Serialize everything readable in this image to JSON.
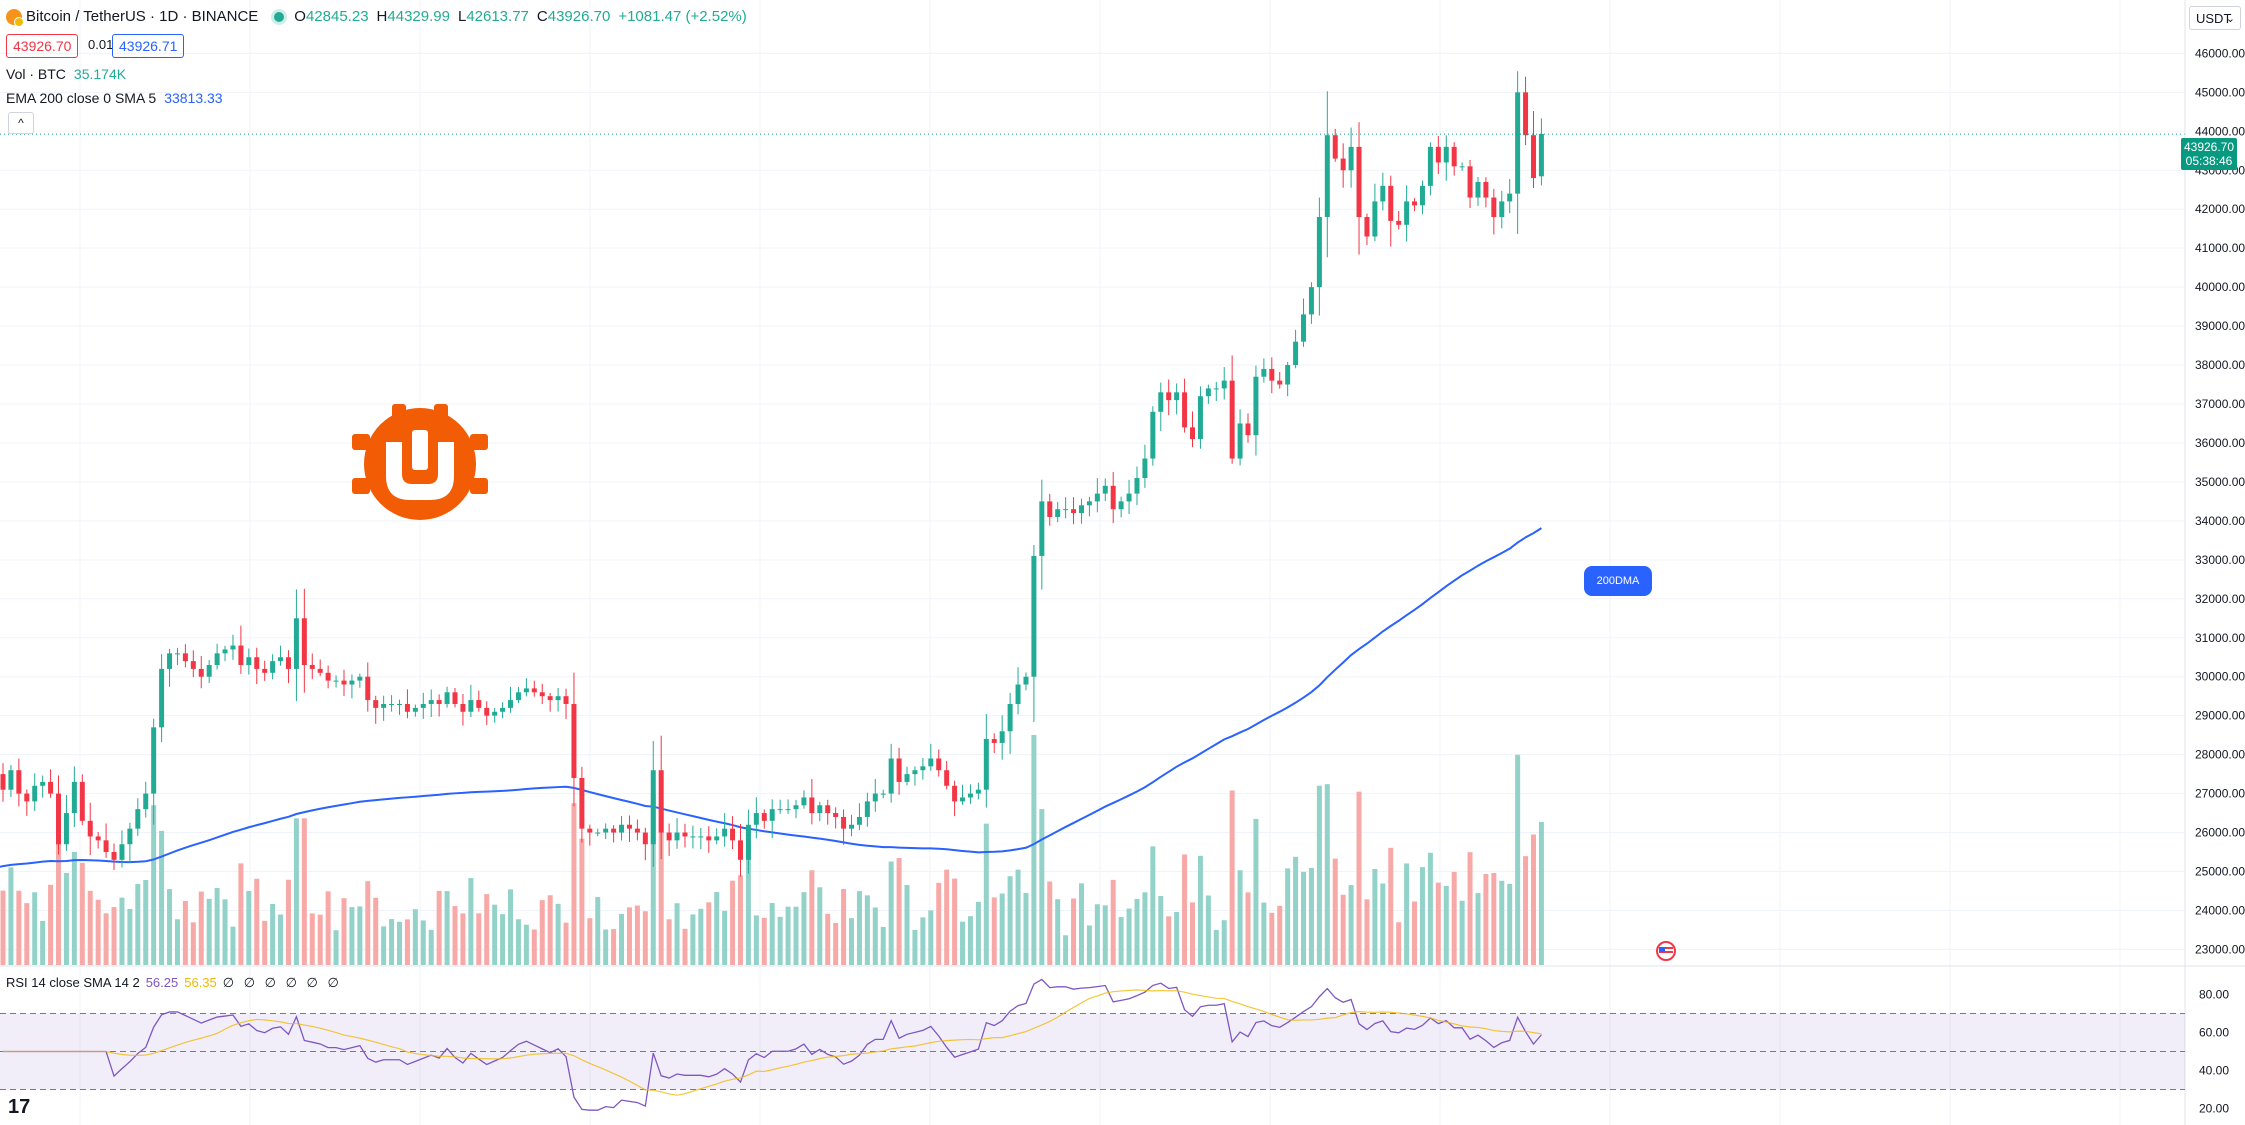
{
  "header": {
    "symbol": "Bitcoin / TetherUS · 1D · BINANCE",
    "ohlc": [
      {
        "k": "O",
        "v": "42845.23"
      },
      {
        "k": "H",
        "v": "44329.99"
      },
      {
        "k": "L",
        "v": "42613.77"
      },
      {
        "k": "C",
        "v": "43926.70"
      },
      {
        "k": "",
        "v": "+1081.47 (+2.52%)"
      }
    ],
    "sell_price": "43926.70",
    "spread": "0.01",
    "buy_price": "43926.71",
    "currency": "USDT",
    "collapse_icon": "chevron-up-icon"
  },
  "indicators": {
    "vol_label": "Vol · BTC",
    "vol_value": "35.174K",
    "ema_label": "EMA 200 close 0 SMA 5",
    "ema_value": "33813.33"
  },
  "price_tag": {
    "price": "43926.70",
    "countdown": "05:38:46"
  },
  "annotation_label": "200DMA",
  "rsi": {
    "label": "RSI 14 close SMA 14 2",
    "value": "56.25",
    "sma_value": "56.35",
    "extra": "∅ ∅ ∅ ∅ ∅ ∅"
  },
  "brand": {
    "tv_logo": "17"
  },
  "colors": {
    "up": "#22ab94",
    "down": "#f23645",
    "ema": "#2962ff",
    "rsi": "#7e57c2",
    "rsi_sma": "#f0b90b",
    "logo": "#f25c05",
    "vol_up": "#93d2c9",
    "vol_down": "#f7a9a7"
  },
  "chart_data": {
    "type": "candlestick",
    "ylim": [
      22600,
      46600
    ],
    "price_ticks": [
      23000,
      24000,
      25000,
      26000,
      27000,
      28000,
      29000,
      30000,
      31000,
      32000,
      33000,
      34000,
      35000,
      36000,
      37000,
      38000,
      39000,
      40000,
      41000,
      42000,
      43000,
      44000,
      45000,
      46000
    ],
    "last_price": 43926.7,
    "close": [
      27100,
      27600,
      27000,
      26800,
      27200,
      27300,
      27000,
      25700,
      26500,
      27300,
      26300,
      25900,
      25800,
      25500,
      25300,
      25700,
      26100,
      26600,
      27000,
      28700,
      30200,
      30600,
      30600,
      30400,
      30200,
      30000,
      30300,
      30600,
      30700,
      30800,
      30300,
      30500,
      30200,
      30100,
      30400,
      30500,
      30200,
      31500,
      30300,
      30200,
      30100,
      29900,
      29900,
      29800,
      29900,
      30000,
      29400,
      29200,
      29300,
      29300,
      29300,
      29100,
      29200,
      29300,
      29400,
      29300,
      29600,
      29300,
      29100,
      29400,
      29200,
      29000,
      29100,
      29200,
      29400,
      29600,
      29700,
      29600,
      29500,
      29400,
      29500,
      29300,
      27400,
      26100,
      26000,
      26000,
      26100,
      26000,
      26200,
      26100,
      26000,
      25700,
      27600,
      26000,
      25800,
      26000,
      25900,
      25900,
      25900,
      25800,
      25900,
      26100,
      25800,
      25300,
      26200,
      26500,
      26300,
      26600,
      26600,
      26600,
      26700,
      26900,
      26500,
      26700,
      26500,
      26400,
      26100,
      26200,
      26400,
      26800,
      27000,
      27000,
      27900,
      27300,
      27500,
      27600,
      27700,
      27900,
      27600,
      27200,
      26800,
      26900,
      27000,
      27100,
      28400,
      28300,
      28600,
      29300,
      29800,
      30000,
      33100,
      34500,
      34100,
      34300,
      34300,
      34200,
      34400,
      34500,
      34700,
      34900,
      34300,
      34500,
      34700,
      35100,
      35600,
      36800,
      37300,
      37100,
      37300,
      36400,
      36100,
      37200,
      37400,
      37400,
      37600,
      35600,
      36500,
      36200,
      37700,
      37900,
      37600,
      37500,
      38000,
      38600,
      39300,
      40000,
      41800,
      43900,
      43300,
      43000,
      43600,
      41800,
      41300,
      42200,
      42600,
      41700,
      41600,
      42200,
      42100,
      42600,
      43600,
      43200,
      43600,
      43100,
      43100,
      42300,
      42700,
      42300,
      41800,
      42200,
      42400,
      45000,
      43900,
      42800,
      43930
    ],
    "volume_ticks": [],
    "rsi_ticks": [
      20,
      40,
      60,
      80
    ],
    "rsi_bands": [
      30,
      50,
      70
    ],
    "ema_last": 33813.33
  }
}
